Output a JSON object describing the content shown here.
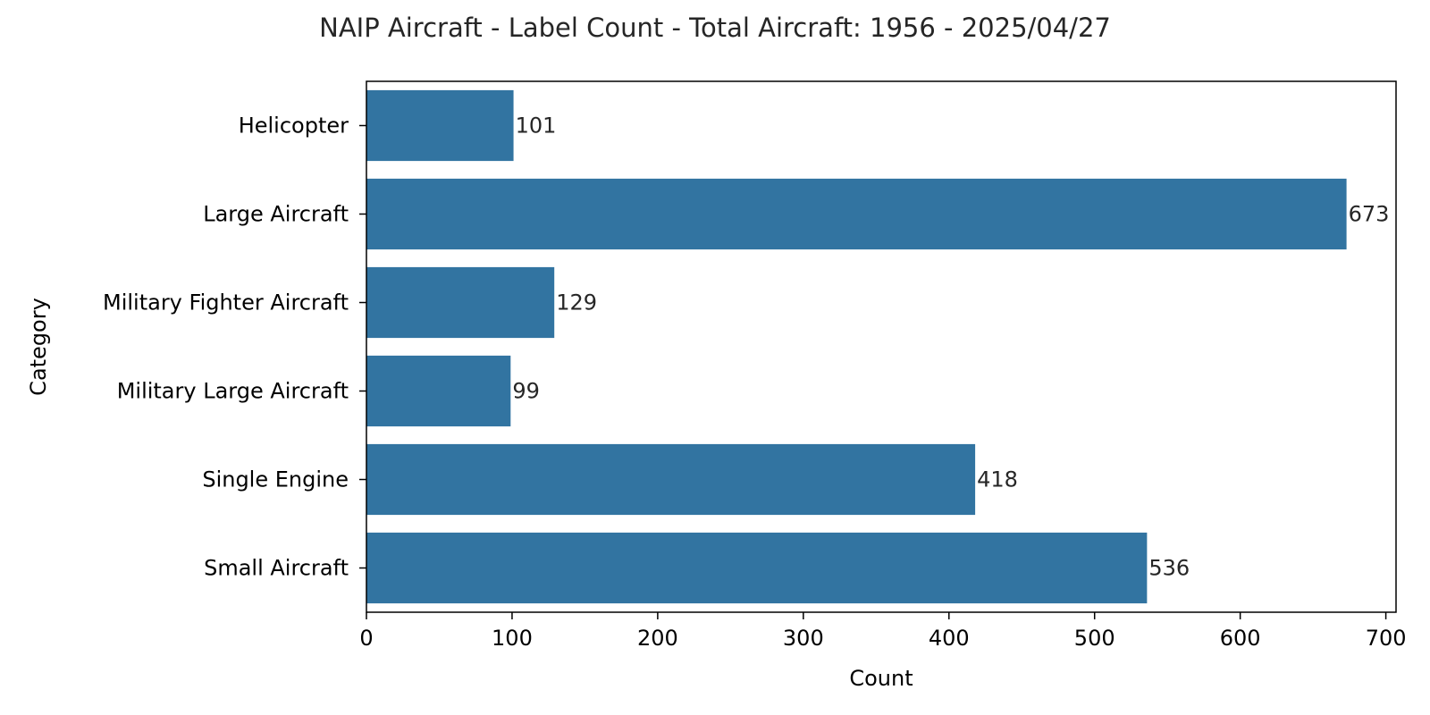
{
  "chart_data": {
    "type": "bar",
    "orientation": "horizontal",
    "title": "NAIP Aircraft - Label Count - Total Aircraft: 1956 - 2025/04/27",
    "xlabel": "Count",
    "ylabel": "Category",
    "categories": [
      "Helicopter",
      "Large Aircraft",
      "Military Fighter Aircraft",
      "Military Large Aircraft",
      "Single Engine",
      "Small Aircraft"
    ],
    "values": [
      101,
      673,
      129,
      99,
      418,
      536
    ],
    "xlim": [
      0,
      707
    ],
    "xticks": [
      0,
      100,
      200,
      300,
      400,
      500,
      600,
      700
    ],
    "bar_color": "#3274a1",
    "grid": false,
    "legend": "none",
    "data_labels": true
  }
}
